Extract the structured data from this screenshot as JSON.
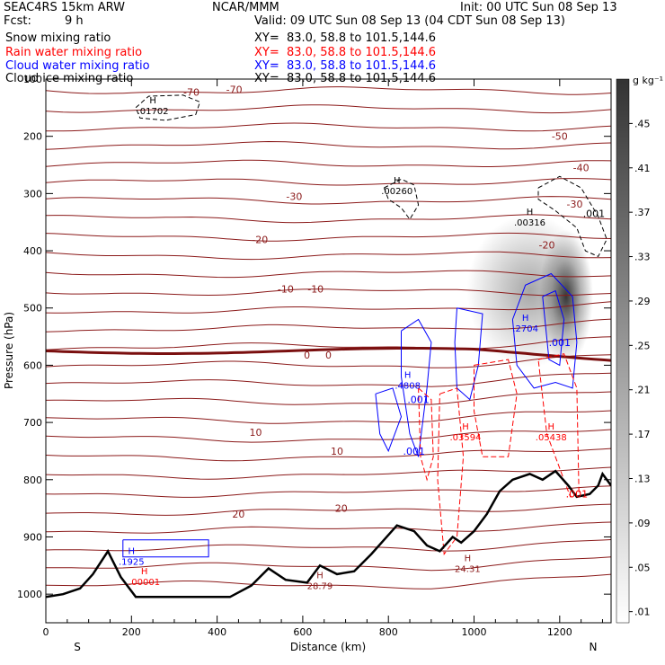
{
  "header": {
    "model": "SEAC4RS 15km ARW",
    "org": "NCAR/MMM",
    "init": "Init: 00 UTC Sun 08 Sep 13",
    "fcst_label": "Fcst:",
    "fcst_value": "9 h",
    "valid": "Valid: 09 UTC Sun 08 Sep 13 (04 CDT Sun 08 Sep 13)",
    "fields": [
      {
        "name": "Snow mixing ratio",
        "xy": "XY=  83.0, 58.8 to 101.5,144.6",
        "color": "#000000"
      },
      {
        "name": "Rain water mixing ratio",
        "xy": "XY=  83.0, 58.8 to 101.5,144.6",
        "color": "#ff0000"
      },
      {
        "name": "Cloud water mixing ratio",
        "xy": "XY=  83.0, 58.8 to 101.5,144.6",
        "color": "#0000ff"
      },
      {
        "name": "Cloud ice mixing ratio",
        "xy": "XY=  83.0, 58.8 to 101.5,144.6",
        "color": "#000000"
      }
    ]
  },
  "chart_data": {
    "type": "contour cross-section",
    "xlabel": "Distance (km)",
    "ylabel": "Pressure (hPa)",
    "xlim": [
      0,
      1320
    ],
    "ylim": [
      1050,
      100
    ],
    "x_ticks": [
      0,
      200,
      400,
      600,
      800,
      1000,
      1200
    ],
    "y_ticks": [
      100,
      200,
      300,
      400,
      500,
      600,
      700,
      800,
      900,
      1000
    ],
    "x_end_labels": {
      "left": "S",
      "right": "N"
    },
    "colorbar": {
      "unit": "g kg⁻¹",
      "labels": [
        ".01",
        ".05",
        ".09",
        ".13",
        ".17",
        ".21",
        ".25",
        ".29",
        ".33",
        ".37",
        ".41",
        ".45"
      ],
      "range": [
        0,
        0.49
      ]
    },
    "temperature_contours": [
      {
        "label": "-70",
        "pressure": 140
      },
      {
        "label": "-50",
        "pressure": 230
      },
      {
        "label": "-40",
        "pressure": 280
      },
      {
        "label": "-30",
        "pressure": 320
      },
      {
        "label": "-20",
        "pressure": 385
      },
      {
        "label": "-10",
        "pressure": 470
      },
      {
        "label": "0",
        "pressure": 575
      },
      {
        "label": "10",
        "pressure": 720
      },
      {
        "label": "20",
        "pressure": 855
      }
    ],
    "contour_labels": [
      {
        "text": "-70",
        "x": 340,
        "p": 123,
        "color": "#8b1a1a"
      },
      {
        "text": "-70",
        "x": 440,
        "p": 118,
        "color": "#8b1a1a"
      },
      {
        "text": "-50",
        "x": 1200,
        "p": 200,
        "color": "#8b1a1a"
      },
      {
        "text": "-40",
        "x": 1250,
        "p": 255,
        "color": "#8b1a1a"
      },
      {
        "text": "-30",
        "x": 580,
        "p": 305,
        "color": "#8b1a1a"
      },
      {
        "text": "-30",
        "x": 1235,
        "p": 318,
        "color": "#8b1a1a"
      },
      {
        "text": "-20",
        "x": 500,
        "p": 380,
        "color": "#8b1a1a"
      },
      {
        "text": "-20",
        "x": 1170,
        "p": 390,
        "color": "#8b1a1a"
      },
      {
        "text": "-10",
        "x": 560,
        "p": 467,
        "color": "#8b1a1a"
      },
      {
        "text": "-10",
        "x": 630,
        "p": 467,
        "color": "#8b1a1a"
      },
      {
        "text": "0",
        "x": 610,
        "p": 582,
        "color": "#8b1a1a"
      },
      {
        "text": "0",
        "x": 660,
        "p": 582,
        "color": "#8b1a1a"
      },
      {
        "text": "10",
        "x": 490,
        "p": 717,
        "color": "#8b1a1a"
      },
      {
        "text": "10",
        "x": 680,
        "p": 750,
        "color": "#8b1a1a"
      },
      {
        "text": "20",
        "x": 450,
        "p": 860,
        "color": "#8b1a1a"
      },
      {
        "text": "20",
        "x": 690,
        "p": 850,
        "color": "#8b1a1a"
      },
      {
        "text": ".001",
        "x": 1280,
        "p": 335,
        "color": "#000000"
      },
      {
        "text": ".001",
        "x": 1200,
        "p": 560,
        "color": "#0000ff"
      },
      {
        "text": ".001",
        "x": 870,
        "p": 660,
        "color": "#0000ff"
      },
      {
        "text": ".001",
        "x": 860,
        "p": 750,
        "color": "#0000ff"
      },
      {
        "text": ".001",
        "x": 1240,
        "p": 825,
        "color": "#ff0000"
      }
    ],
    "maxima": [
      {
        "label": ".01702",
        "x": 250,
        "p": 150,
        "color": "#000000"
      },
      {
        "label": ".00260",
        "x": 820,
        "p": 290,
        "color": "#000000"
      },
      {
        "label": ".00316",
        "x": 1130,
        "p": 345,
        "color": "#000000"
      },
      {
        "label": ".2704",
        "x": 1120,
        "p": 530,
        "color": "#0000ff"
      },
      {
        "label": ".4808",
        "x": 845,
        "p": 630,
        "color": "#0000ff"
      },
      {
        "label": ".03594",
        "x": 980,
        "p": 720,
        "color": "#ff0000"
      },
      {
        "label": ".05438",
        "x": 1180,
        "p": 720,
        "color": "#ff0000"
      },
      {
        "label": ".1925",
        "x": 200,
        "p": 938,
        "color": "#0000ff"
      },
      {
        "label": ".00001",
        "x": 230,
        "p": 973,
        "color": "#ff0000"
      },
      {
        "label": "24.31",
        "x": 985,
        "p": 950,
        "color": "#8b1a1a"
      },
      {
        "label": "28.79",
        "x": 640,
        "p": 980,
        "color": "#8b1a1a"
      }
    ],
    "terrain_pressure": {
      "x": [
        0,
        40,
        80,
        110,
        145,
        175,
        210,
        280,
        350,
        430,
        480,
        520,
        560,
        610,
        640,
        680,
        720,
        760,
        790,
        820,
        860,
        890,
        920,
        950,
        970,
        1000,
        1030,
        1060,
        1090,
        1130,
        1160,
        1190,
        1220,
        1240,
        1270,
        1290,
        1300,
        1320
      ],
      "p": [
        1005,
        1000,
        990,
        965,
        925,
        970,
        1005,
        1005,
        1005,
        1005,
        985,
        955,
        975,
        980,
        950,
        965,
        960,
        930,
        905,
        880,
        890,
        915,
        925,
        900,
        910,
        890,
        860,
        820,
        800,
        790,
        800,
        785,
        810,
        830,
        825,
        810,
        790,
        810
      ]
    }
  }
}
